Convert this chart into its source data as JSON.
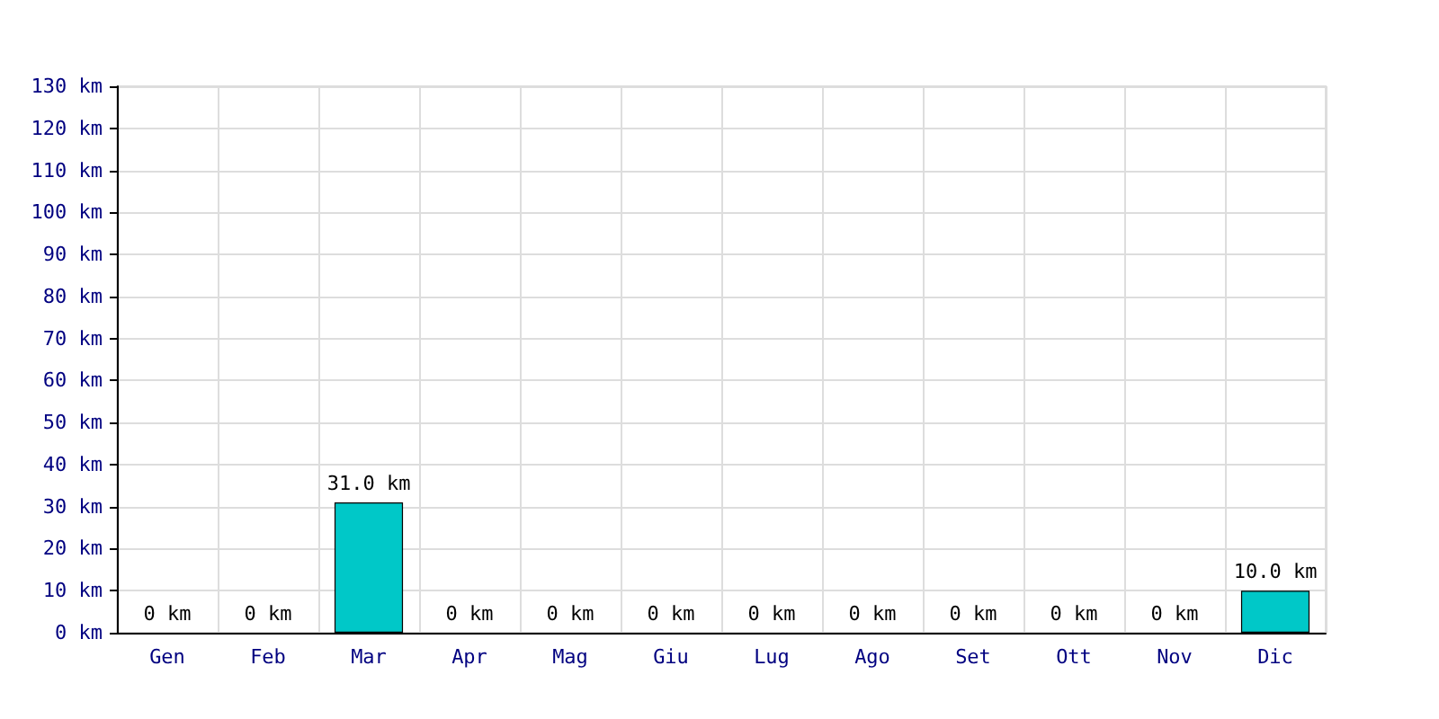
{
  "chart_data": {
    "type": "bar",
    "categories": [
      "Gen",
      "Feb",
      "Mar",
      "Apr",
      "Mag",
      "Giu",
      "Lug",
      "Ago",
      "Set",
      "Ott",
      "Nov",
      "Dic"
    ],
    "series": [
      {
        "color": "#00c8c8",
        "values": [
          0,
          0,
          31,
          0,
          0,
          0,
          0,
          0,
          0,
          0,
          0,
          10
        ],
        "value_labels": [
          "0 km",
          "0 km",
          "31.0 km",
          "0 km",
          "0 km",
          "0 km",
          "0 km",
          "0 km",
          "0 km",
          "0 km",
          "0 km",
          "10.0 km"
        ]
      }
    ],
    "ylim": [
      0,
      130
    ],
    "yticks": [
      {
        "value": 0,
        "label": "0 km"
      },
      {
        "value": 10,
        "label": "10 km"
      },
      {
        "value": 20,
        "label": "20 km"
      },
      {
        "value": 30,
        "label": "30 km"
      },
      {
        "value": 40,
        "label": "40 km"
      },
      {
        "value": 50,
        "label": "50 km"
      },
      {
        "value": 60,
        "label": "60 km"
      },
      {
        "value": 70,
        "label": "70 km"
      },
      {
        "value": 80,
        "label": "80 km"
      },
      {
        "value": 90,
        "label": "90 km"
      },
      {
        "value": 100,
        "label": "100 km"
      },
      {
        "value": 110,
        "label": "110 km"
      },
      {
        "value": 120,
        "label": "120 km"
      },
      {
        "value": 130,
        "label": "130 km"
      }
    ],
    "grid": true
  }
}
